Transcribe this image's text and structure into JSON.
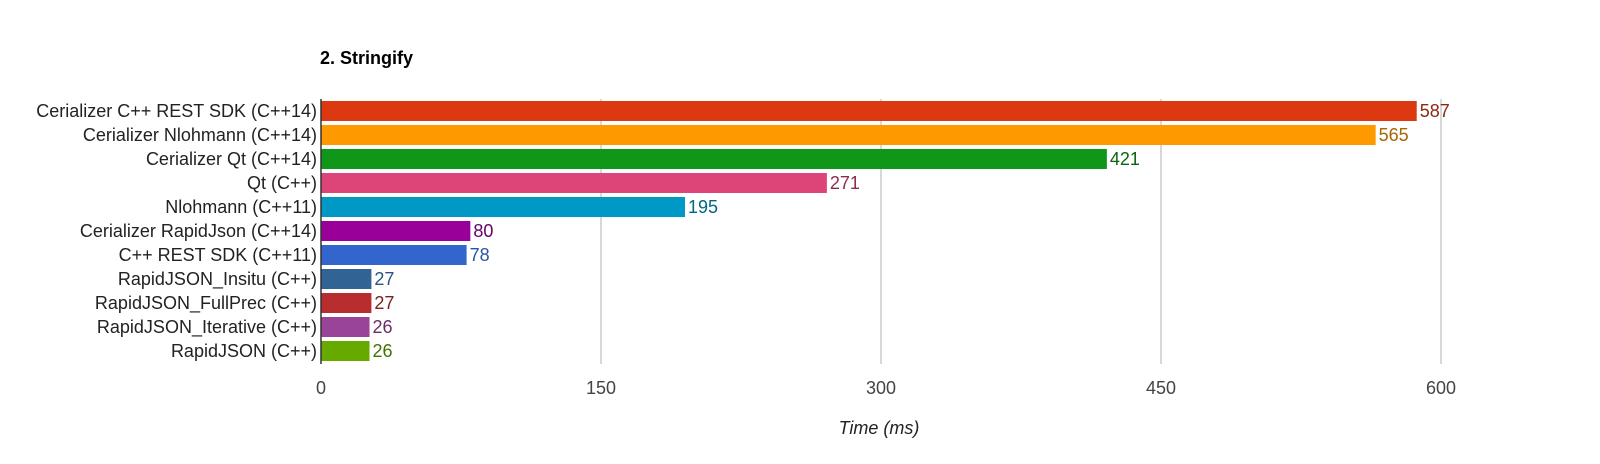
{
  "chart_data": {
    "type": "bar",
    "orientation": "horizontal",
    "title": "2. Stringify",
    "xlabel": "Time (ms)",
    "ylabel": "",
    "xlim": [
      0,
      600
    ],
    "x_ticks": [
      "0",
      "150",
      "300",
      "450",
      "600"
    ],
    "grid": true,
    "categories": [
      "Cerializer C++ REST SDK (C++14)",
      "Cerializer Nlohmann (C++14)",
      "Cerializer Qt (C++14)",
      "Qt (C++)",
      "Nlohmann (C++11)",
      "Cerializer RapidJson (C++14)",
      "C++ REST SDK (C++11)",
      "RapidJSON_Insitu (C++)",
      "RapidJSON_FullPrec (C++)",
      "RapidJSON_Iterative (C++)",
      "RapidJSON (C++)"
    ],
    "values": [
      587,
      565,
      421,
      271,
      195,
      80,
      78,
      27,
      27,
      26,
      26
    ],
    "value_labels": [
      "587",
      "565",
      "421",
      "271",
      "195",
      "80",
      "78",
      "27",
      "27",
      "26",
      "26"
    ],
    "colors": [
      "#dc3912",
      "#ff9900",
      "#109618",
      "#dd4477",
      "#0099c6",
      "#990099",
      "#3366cc",
      "#316395",
      "#b82e2e",
      "#994499",
      "#66aa00"
    ],
    "label_colors": [
      "#8e2810",
      "#a66600",
      "#0d6410",
      "#8f2c4e",
      "#006685",
      "#660066",
      "#2a53a8",
      "#2a5380",
      "#7a2020",
      "#662e66",
      "#447100"
    ]
  }
}
